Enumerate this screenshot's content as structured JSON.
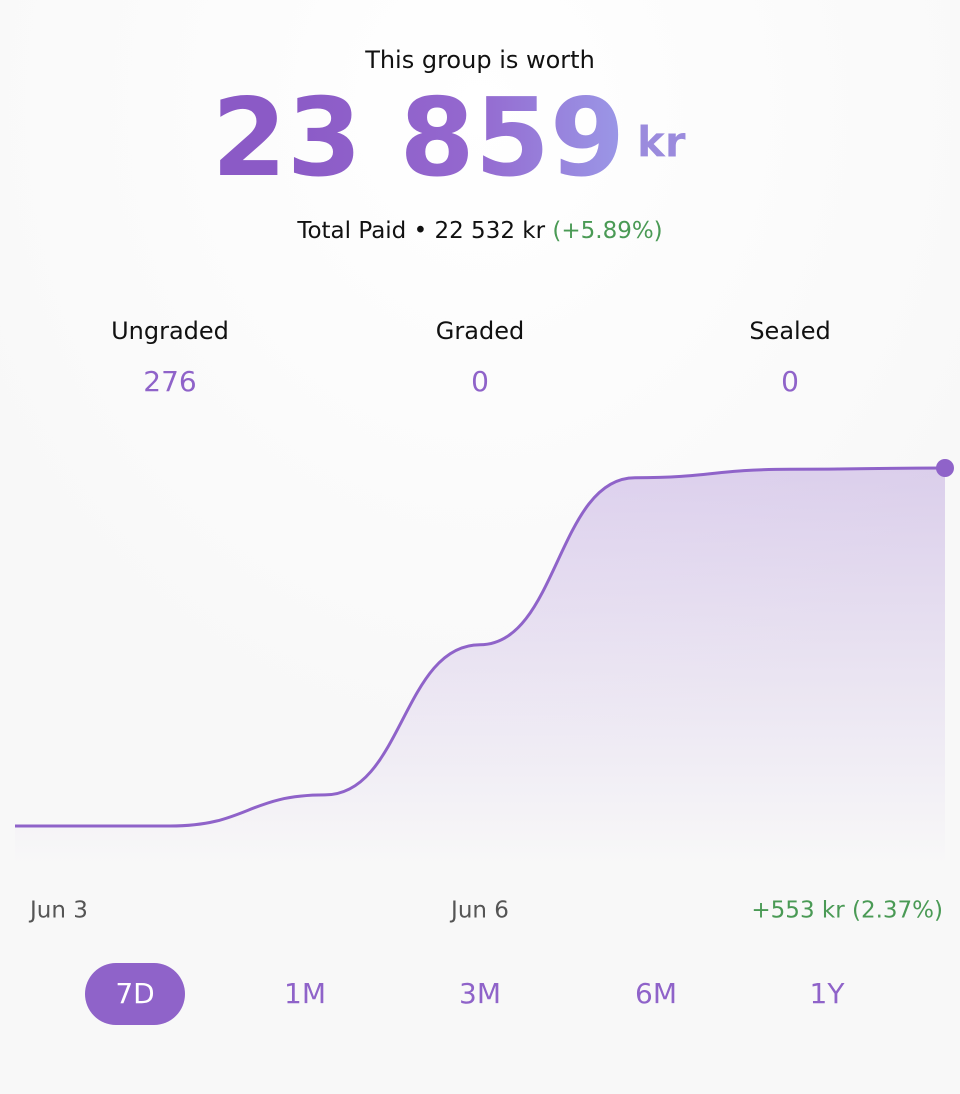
{
  "header": {
    "subtitle": "This group is worth",
    "value": "23 859",
    "unit": "kr",
    "total_paid_label": "Total Paid",
    "separator": "•",
    "total_paid": "22 532 kr",
    "total_paid_change": "(+5.89%)"
  },
  "stats": [
    {
      "label": "Ungraded",
      "value": "276"
    },
    {
      "label": "Graded",
      "value": "0"
    },
    {
      "label": "Sealed",
      "value": "0"
    }
  ],
  "chart_data": {
    "type": "line",
    "categories": [
      "Jun 3",
      null,
      null,
      "Jun 6",
      null,
      null,
      null
    ],
    "series": [
      {
        "color": "#8f63c9",
        "values": [
          23306,
          23306,
          23354,
          23586,
          23844,
          23857,
          23859
        ]
      }
    ],
    "ylim": [
      23306,
      23859
    ],
    "change_label": "+553 kr (2.37%)"
  },
  "ranges": [
    {
      "label": "7D",
      "selected": true
    },
    {
      "label": "1M",
      "selected": false
    },
    {
      "label": "3M",
      "selected": false
    },
    {
      "label": "6M",
      "selected": false
    },
    {
      "label": "1Y",
      "selected": false
    }
  ]
}
